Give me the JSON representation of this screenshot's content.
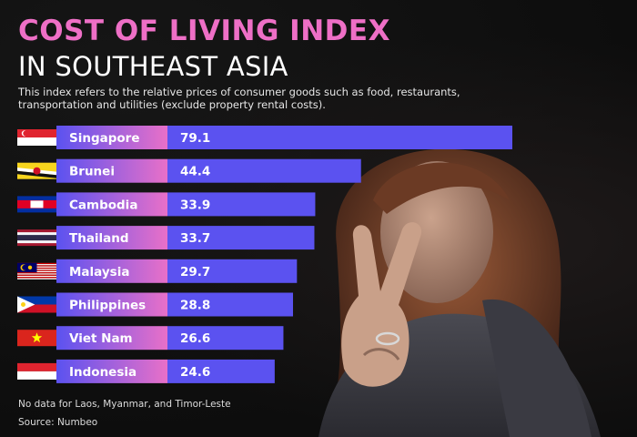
{
  "title_line1": "COST OF LIVING INDEX",
  "title_line2": "IN SOUTHEAST ASIA",
  "subtitle": "This index refers to the relative prices of consumer goods such as food, restaurants, transportation and utilities (exclude property rental costs).",
  "note": "No data for Laos, Myanmar, and Timor-Leste",
  "source": "Source: Numbeo",
  "colors": {
    "title_accent": "#ee6fc6",
    "bar": "#5b52f0",
    "label_gradient_start": "#5b52f0",
    "label_gradient_end": "#e870c8"
  },
  "chart_data": {
    "type": "bar",
    "orientation": "horizontal",
    "categories": [
      "Singapore",
      "Brunei",
      "Cambodia",
      "Thailand",
      "Malaysia",
      "Philippines",
      "Viet Nam",
      "Indonesia"
    ],
    "values": [
      79.1,
      44.4,
      33.9,
      33.7,
      29.7,
      28.8,
      26.6,
      24.6
    ],
    "value_labels": [
      "79.1",
      "44.4",
      "33.9",
      "33.7",
      "29.7",
      "28.8",
      "26.6",
      "24.6"
    ],
    "flags": [
      "singapore-flag",
      "brunei-flag",
      "cambodia-flag",
      "thailand-flag",
      "malaysia-flag",
      "philippines-flag",
      "vietnam-flag",
      "indonesia-flag"
    ],
    "title": "",
    "xlabel": "",
    "ylabel": "",
    "grid": false
  }
}
